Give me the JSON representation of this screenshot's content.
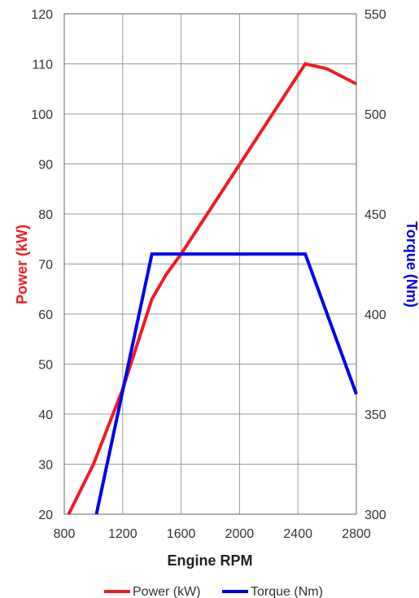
{
  "chart_data": {
    "type": "line",
    "xlabel": "Engine RPM",
    "ylabel_left": "Power (kW)",
    "ylabel_right": "Torque (Nm)",
    "xlim": [
      800,
      2800
    ],
    "x_ticks": [
      800,
      1200,
      1600,
      2000,
      2400,
      2800
    ],
    "ylim_left": [
      20,
      120
    ],
    "y_left_ticks": [
      20,
      30,
      40,
      50,
      60,
      70,
      80,
      90,
      100,
      110,
      120
    ],
    "ylim_right": [
      300,
      550
    ],
    "y_right_ticks": [
      300,
      350,
      400,
      450,
      500,
      550
    ],
    "grid": true,
    "legend_position": "bottom",
    "series": [
      {
        "name": "Power (kW)",
        "axis": "left",
        "color": "#ee1c25",
        "x": [
          830,
          1000,
          1200,
          1400,
          1500,
          1600,
          2450,
          2600,
          2800
        ],
        "y": [
          20,
          30,
          45,
          63,
          68,
          72,
          110,
          109,
          106
        ]
      },
      {
        "name": "Torque (Nm)",
        "axis": "right",
        "color": "#0000ee",
        "x": [
          1020,
          1400,
          2450,
          2800
        ],
        "y": [
          300,
          430,
          430,
          360
        ]
      }
    ]
  }
}
